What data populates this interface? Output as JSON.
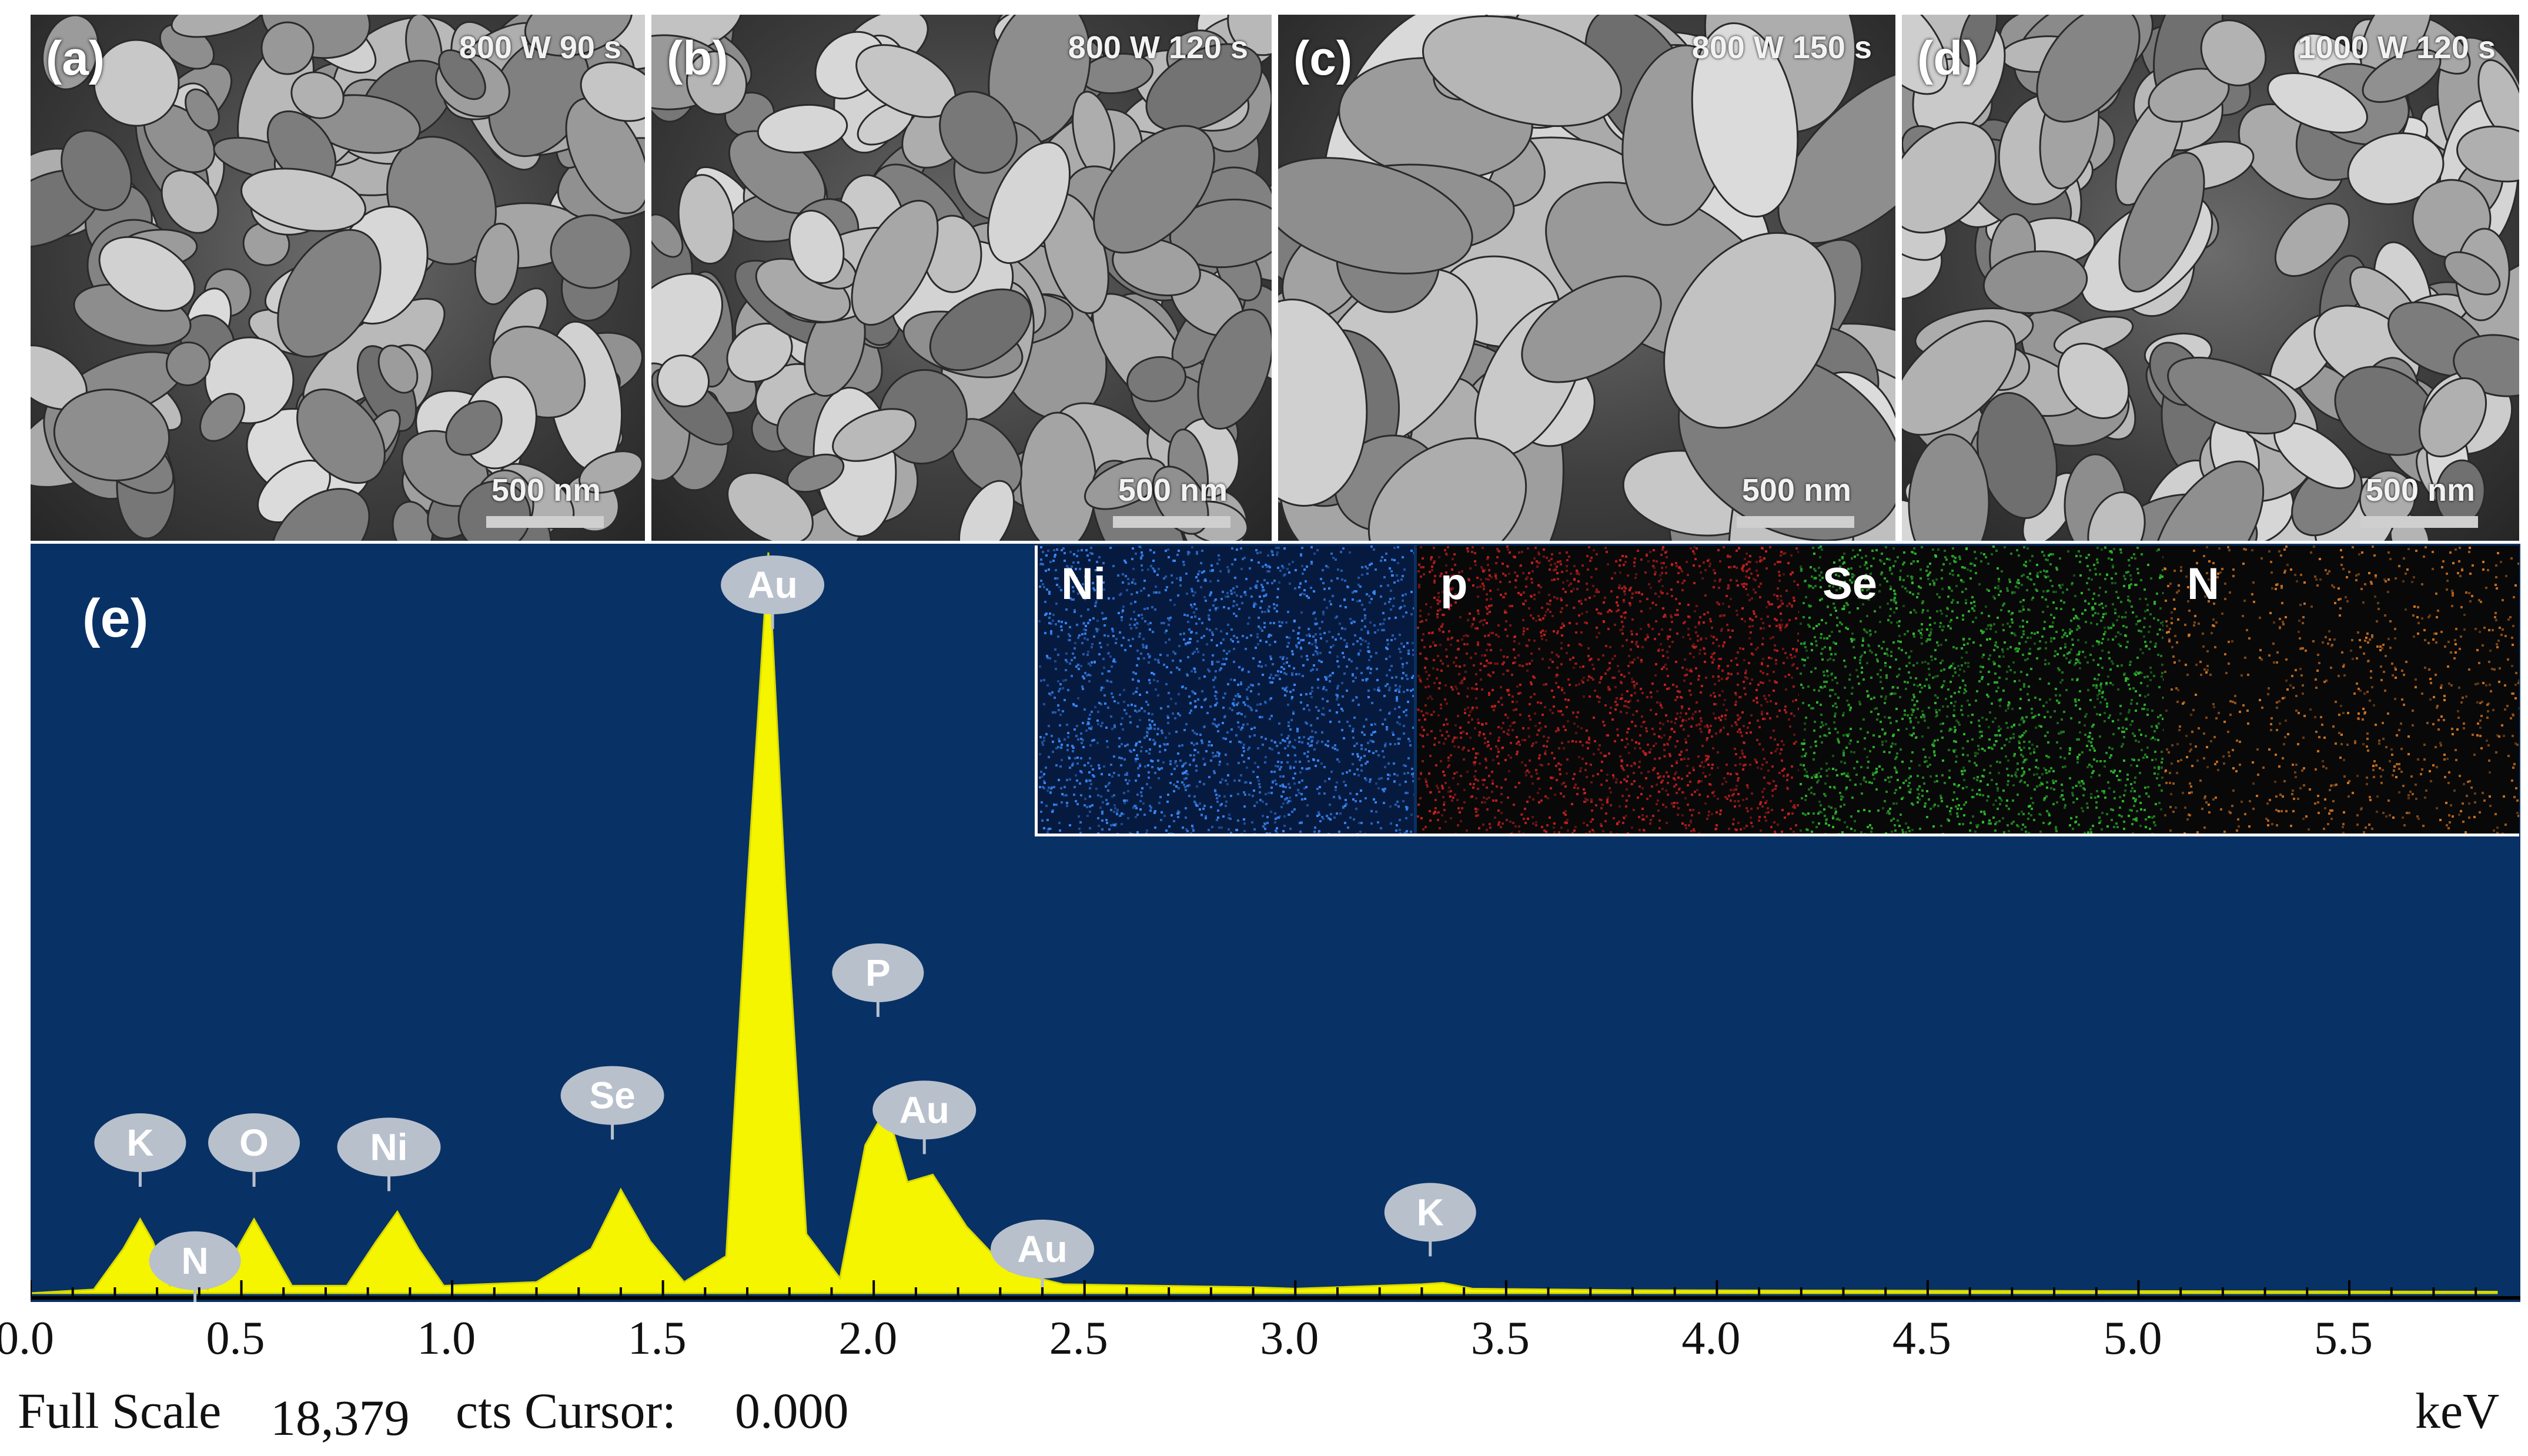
{
  "panels": [
    {
      "letter": "(a)",
      "condition": "800 W 90 s",
      "scale": "500 nm"
    },
    {
      "letter": "(b)",
      "condition": "800 W 120 s",
      "scale": "500 nm"
    },
    {
      "letter": "(c)",
      "condition": "800 W 150 s",
      "scale": "500 nm"
    },
    {
      "letter": "(d)",
      "condition": "1000 W 120 s",
      "scale": "500 nm"
    }
  ],
  "edx_label": "(e)",
  "maps": [
    {
      "label": "Ni",
      "color": "#3b8cff"
    },
    {
      "label": "p",
      "color": "#d02020"
    },
    {
      "label": "Se",
      "color": "#2ec22e"
    },
    {
      "label": "N",
      "color": "#e07a20"
    }
  ],
  "colors": {
    "spectrum_bg": "#083165",
    "spectrum_fill": "#f5f500",
    "peak_label": "#b8c0cc"
  },
  "chart_data": {
    "type": "area",
    "x_unit": "keV",
    "xlim": [
      0.0,
      5.85
    ],
    "xticks": [
      "0.0",
      "0.5",
      "1.0",
      "1.5",
      "2.0",
      "2.5",
      "3.0",
      "3.5",
      "4.0",
      "4.5",
      "5.0",
      "5.5"
    ],
    "spectrum": [
      [
        0.0,
        0
      ],
      [
        0.15,
        0.005
      ],
      [
        0.22,
        0.06
      ],
      [
        0.26,
        0.1
      ],
      [
        0.29,
        0.07
      ],
      [
        0.33,
        0.01
      ],
      [
        0.38,
        0.02
      ],
      [
        0.42,
        0.005
      ],
      [
        0.48,
        0.05
      ],
      [
        0.53,
        0.1
      ],
      [
        0.57,
        0.06
      ],
      [
        0.62,
        0.01
      ],
      [
        0.75,
        0.01
      ],
      [
        0.82,
        0.07
      ],
      [
        0.87,
        0.11
      ],
      [
        0.92,
        0.06
      ],
      [
        0.98,
        0.01
      ],
      [
        1.2,
        0.015
      ],
      [
        1.33,
        0.06
      ],
      [
        1.4,
        0.14
      ],
      [
        1.47,
        0.07
      ],
      [
        1.55,
        0.015
      ],
      [
        1.65,
        0.05
      ],
      [
        1.7,
        0.55
      ],
      [
        1.75,
        1.0
      ],
      [
        1.79,
        0.55
      ],
      [
        1.84,
        0.08
      ],
      [
        1.92,
        0.02
      ],
      [
        1.98,
        0.2
      ],
      [
        2.03,
        0.25
      ],
      [
        2.08,
        0.15
      ],
      [
        2.14,
        0.16
      ],
      [
        2.22,
        0.09
      ],
      [
        2.32,
        0.03
      ],
      [
        2.45,
        0.012
      ],
      [
        2.9,
        0.008
      ],
      [
        3.0,
        0.006
      ],
      [
        3.3,
        0.012
      ],
      [
        3.35,
        0.014
      ],
      [
        3.42,
        0.006
      ],
      [
        3.8,
        0.004
      ],
      [
        5.85,
        0.002
      ]
    ],
    "peak_labels": [
      {
        "element": "K",
        "energy": 0.26
      },
      {
        "element": "N",
        "energy": 0.39
      },
      {
        "element": "O",
        "energy": 0.53
      },
      {
        "element": "Ni",
        "energy": 0.85
      },
      {
        "element": "Se",
        "energy": 1.38
      },
      {
        "element": "Au",
        "energy": 1.76
      },
      {
        "element": "P",
        "energy": 2.01
      },
      {
        "element": "Au",
        "energy": 2.12
      },
      {
        "element": "Au",
        "energy": 2.4
      },
      {
        "element": "K",
        "energy": 3.32
      }
    ]
  },
  "footer": {
    "full_scale_label": "Full Scale",
    "full_scale_value": "18,379",
    "cts_label": "cts Cursor:",
    "cursor_value": "0.000",
    "unit": "keV"
  }
}
